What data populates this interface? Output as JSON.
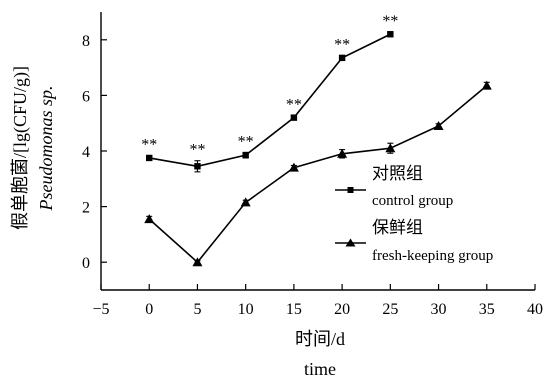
{
  "chart_data": {
    "type": "line",
    "xlabel": "时间/d",
    "xlabel_en": "time",
    "ylabel": "假单胞菌/[lg(CFU/g)]",
    "ylabel_en": "Pseudomonas sp.",
    "xlim": [
      -5,
      40
    ],
    "ylim": [
      -1,
      9
    ],
    "x_ticks": [
      "−5",
      "0",
      "5",
      "10",
      "15",
      "20",
      "25",
      "30",
      "35",
      "40"
    ],
    "x_tick_values": [
      -5,
      0,
      5,
      10,
      15,
      20,
      25,
      30,
      35,
      40
    ],
    "y_ticks": [
      "0",
      "2",
      "4",
      "6",
      "8"
    ],
    "y_tick_values": [
      0,
      2,
      4,
      6,
      8
    ],
    "grid": false,
    "legend_position": "right",
    "series": [
      {
        "name": "对照组",
        "name_en": "control group",
        "marker": "square",
        "x": [
          0,
          5,
          10,
          15,
          20,
          25
        ],
        "y": [
          3.75,
          3.45,
          3.85,
          5.2,
          7.35,
          8.2
        ],
        "err": [
          0.08,
          0.2,
          0.1,
          0.08,
          0.08,
          0.08
        ],
        "annotations": [
          "**",
          "**",
          "**",
          "**",
          "**",
          "**"
        ]
      },
      {
        "name": "保鲜组",
        "name_en": "fresh-keeping group",
        "marker": "triangle",
        "x": [
          0,
          5,
          10,
          15,
          20,
          25,
          30,
          35
        ],
        "y": [
          1.55,
          0.0,
          2.15,
          3.4,
          3.9,
          4.1,
          4.9,
          6.35
        ],
        "err": [
          0.1,
          0.05,
          0.08,
          0.08,
          0.15,
          0.18,
          0.08,
          0.12
        ]
      }
    ]
  }
}
